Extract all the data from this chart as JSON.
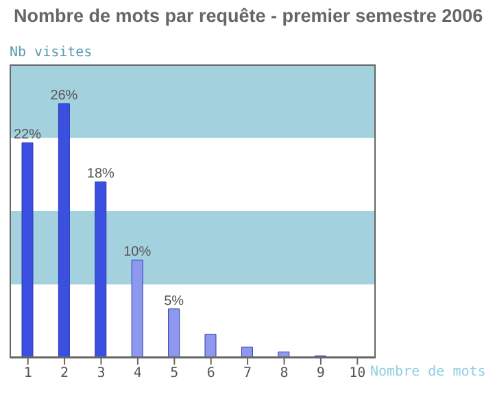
{
  "chart_data": {
    "type": "bar",
    "title": "Nombre de mots par requête - premier semestre 2006",
    "xlabel": "Nombre de mots",
    "ylabel": "Nb visites",
    "categories": [
      "1",
      "2",
      "3",
      "4",
      "5",
      "6",
      "7",
      "8",
      "9",
      "10"
    ],
    "values": [
      22,
      26,
      18,
      10,
      5,
      2.4,
      1.1,
      0.6,
      0.2,
      0.1
    ],
    "value_labels": [
      "22%",
      "26%",
      "18%",
      "10%",
      "5%",
      null,
      null,
      null,
      null,
      null
    ],
    "colors": [
      "#3b4fe0",
      "#3b4fe0",
      "#3b4fe0",
      "#8d98ee",
      "#8d98ee",
      "#8d98ee",
      "#8d98ee",
      "#8d98ee",
      "#8d98ee",
      "#8d98ee"
    ],
    "ylim": [
      0,
      30
    ],
    "tick_labels": "x",
    "grid": false,
    "bands": [
      {
        "axis": "y",
        "from": 7.5,
        "to": 15,
        "color": "#a3d1de"
      },
      {
        "axis": "y",
        "from": 22.5,
        "to": 30,
        "color": "#a3d1de"
      }
    ]
  }
}
